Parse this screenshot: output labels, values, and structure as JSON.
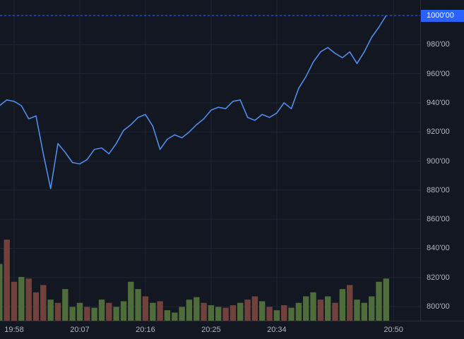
{
  "chart_data": {
    "type": "line",
    "title": "",
    "x_times": [
      "19:56",
      "19:57",
      "19:58",
      "19:59",
      "20:00",
      "20:01",
      "20:02",
      "20:03",
      "20:04",
      "20:05",
      "20:06",
      "20:07",
      "20:08",
      "20:09",
      "20:10",
      "20:11",
      "20:12",
      "20:13",
      "20:14",
      "20:15",
      "20:16",
      "20:17",
      "20:18",
      "20:19",
      "20:20",
      "20:21",
      "20:22",
      "20:23",
      "20:24",
      "20:25",
      "20:26",
      "20:27",
      "20:28",
      "20:29",
      "20:30",
      "20:31",
      "20:32",
      "20:33",
      "20:34",
      "20:35",
      "20:36",
      "20:37",
      "20:38",
      "20:39",
      "20:40",
      "20:41",
      "20:42",
      "20:43",
      "20:44",
      "20:45",
      "20:46",
      "20:47",
      "20:48",
      "20:49"
    ],
    "series": [
      {
        "name": "price",
        "values": [
          938,
          942,
          941,
          938,
          929,
          931,
          905,
          881,
          912,
          906,
          899,
          898,
          901,
          908,
          909,
          905,
          912,
          921,
          925,
          930,
          932,
          924,
          908,
          915,
          918,
          916,
          920,
          925,
          929,
          935,
          937,
          936,
          941,
          942,
          930,
          928,
          932,
          930,
          933,
          940,
          936,
          950,
          958,
          968,
          975,
          978,
          974,
          971,
          975,
          967,
          975,
          985,
          992,
          1000
        ]
      }
    ],
    "volume": {
      "values": [
        70,
        100,
        48,
        54,
        52,
        35,
        44,
        26,
        22,
        39,
        17,
        22,
        17,
        16,
        26,
        22,
        17,
        24,
        48,
        39,
        30,
        22,
        24,
        13,
        10,
        17,
        26,
        29,
        22,
        19,
        17,
        16,
        19,
        22,
        26,
        30,
        24,
        17,
        13,
        19,
        16,
        22,
        30,
        35,
        26,
        30,
        22,
        39,
        44,
        26,
        22,
        30,
        48,
        52
      ],
      "directions": [
        "up",
        "down",
        "down",
        "up",
        "down",
        "down",
        "down",
        "up",
        "down",
        "up",
        "up",
        "up",
        "down",
        "up",
        "up",
        "down",
        "up",
        "up",
        "up",
        "up",
        "down",
        "up",
        "down",
        "up",
        "up",
        "up",
        "up",
        "up",
        "down",
        "up",
        "up",
        "down",
        "down",
        "up",
        "down",
        "down",
        "up",
        "down",
        "up",
        "down",
        "up",
        "up",
        "up",
        "up",
        "down",
        "up",
        "down",
        "up",
        "down",
        "up",
        "up",
        "up",
        "up",
        "up"
      ]
    },
    "y_axis": {
      "labels": [
        "1000'00",
        "980'00",
        "960'00",
        "940'00",
        "920'00",
        "900'00",
        "880'00",
        "860'00",
        "840'00",
        "820'00",
        "800'00"
      ],
      "values": [
        1000,
        980,
        960,
        940,
        920,
        900,
        880,
        860,
        840,
        820,
        800
      ]
    },
    "x_axis": {
      "tick_labels": [
        "19:58",
        "20:07",
        "20:16",
        "20:25",
        "20:34",
        "20:50"
      ]
    },
    "last_price": {
      "label": "1000'00",
      "value": 1000
    },
    "ylim": [
      795,
      1005
    ],
    "grid": true,
    "legend_position": "none",
    "colors": {
      "background": "#131722",
      "grid": "#1e2433",
      "line": "#4f8ce8",
      "last_price_line": "#2962ff",
      "badge_bg": "#2962ff",
      "badge_text": "#ffffff",
      "axis_text": "#b2b5be",
      "axis_border": "#2a2e39",
      "volume_up": "#4f6d3a",
      "volume_down": "#71413c"
    }
  }
}
